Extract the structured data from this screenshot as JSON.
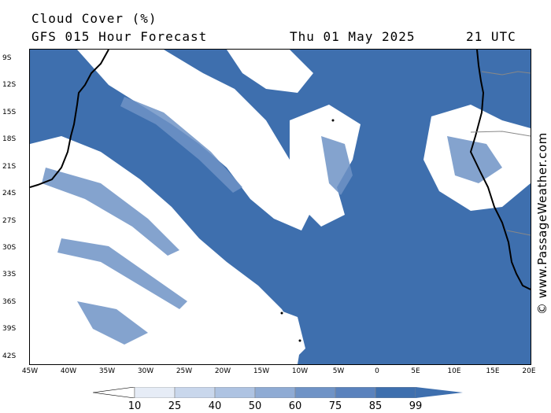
{
  "header": {
    "title": "Cloud Cover (%)",
    "subtitle": "GFS 015 Hour Forecast",
    "date": "Thu 01 May 2025",
    "time": "21 UTC"
  },
  "credit": "© www.PassageWeather.com",
  "map": {
    "lat_labels": [
      "9S",
      "12S",
      "15S",
      "18S",
      "21S",
      "24S",
      "27S",
      "30S",
      "33S",
      "36S",
      "39S",
      "42S"
    ],
    "lon_labels": [
      "45W",
      "40W",
      "35W",
      "30W",
      "25W",
      "20W",
      "15W",
      "10W",
      "5W",
      "0",
      "5E",
      "10E",
      "15E",
      "20E"
    ],
    "colors": {
      "clear": "#ffffff",
      "cloud": "#3e6fae",
      "cloud_mid": "#6f93c6",
      "coast": "#000000"
    }
  },
  "legend": {
    "values": [
      "10",
      "25",
      "40",
      "50",
      "60",
      "75",
      "85",
      "99"
    ],
    "colors": [
      "#ffffff",
      "#e6ecf6",
      "#c9d7ec",
      "#aec3e2",
      "#8fabd4",
      "#6f93c6",
      "#5a82bd",
      "#3e6fae"
    ]
  }
}
